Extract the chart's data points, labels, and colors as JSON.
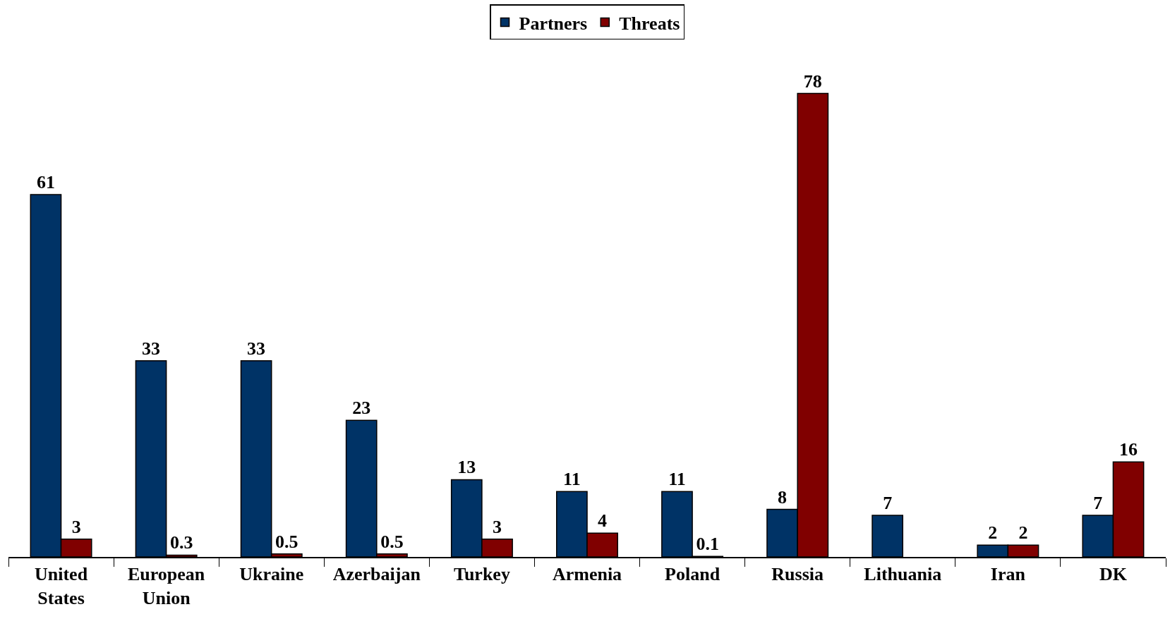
{
  "chart_data": {
    "type": "bar",
    "categories": [
      "United States",
      "European Union",
      "Ukraine",
      "Azerbaijan",
      "Turkey",
      "Armenia",
      "Poland",
      "Russia",
      "Lithuania",
      "Iran",
      "DK"
    ],
    "series": [
      {
        "name": "Partners",
        "color": "#003366",
        "values": [
          61,
          33,
          33,
          23,
          13,
          11,
          11,
          8,
          7,
          2,
          7
        ]
      },
      {
        "name": "Threats",
        "color": "#800000",
        "values": [
          3,
          0.3,
          0.5,
          0.5,
          3,
          4,
          0.1,
          78,
          null,
          2,
          16
        ]
      }
    ],
    "data_labels": true,
    "legend": "top",
    "grid": false
  }
}
